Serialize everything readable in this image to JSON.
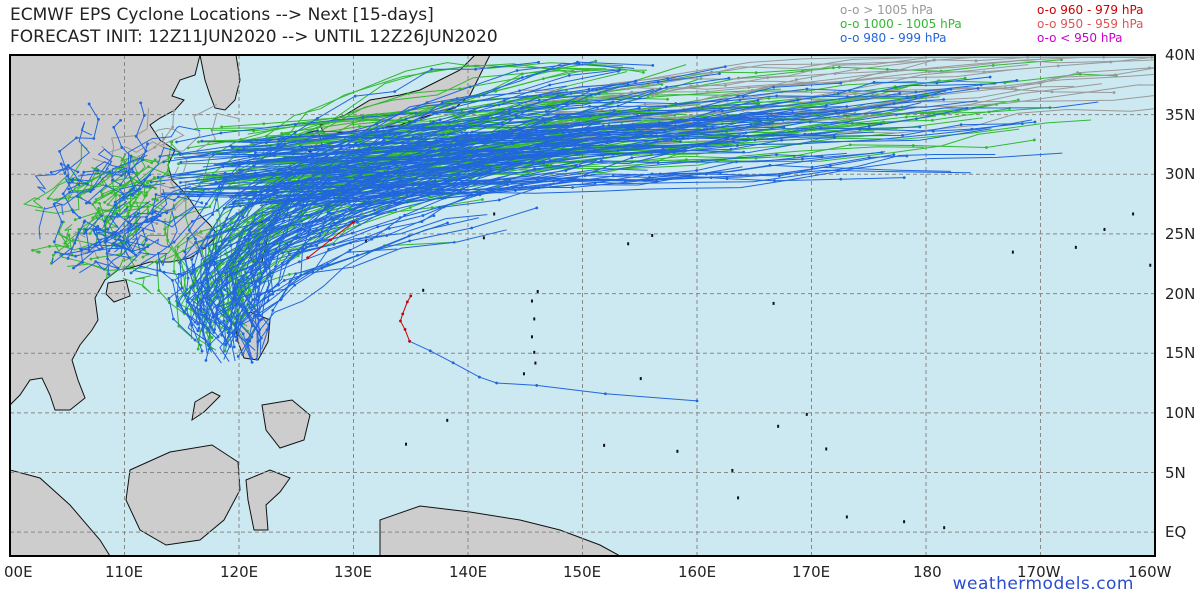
{
  "title": {
    "line1": "ECMWF EPS Cyclone Locations --> Next [15-days]",
    "line2": "FORECAST INIT: 12Z11JUN2020 --> UNTIL 12Z26JUN2020"
  },
  "legend": [
    {
      "label": "o-o > 1005 hPa",
      "color": "#999999"
    },
    {
      "label": "o-o 1000 - 1005 hPa",
      "color": "#33b833"
    },
    {
      "label": "o-o 980 - 999 hPa",
      "color": "#2266dd"
    },
    {
      "label": "o-o 960 - 979 hPa",
      "color": "#cc0000"
    },
    {
      "label": "o-o 950 - 959 hPa",
      "color": "#dd5555"
    },
    {
      "label": "o-o < 950 hPa",
      "color": "#cc00cc"
    }
  ],
  "map": {
    "lon_range": [
      100,
      200
    ],
    "lat_range": [
      -2,
      40
    ],
    "ocean_color": "#cce9f1",
    "land_color": "#cdcdcd",
    "lat_labels": [
      "40N",
      "35N",
      "30N",
      "25N",
      "20N",
      "15N",
      "10N",
      "5N",
      "EQ"
    ],
    "lon_labels": [
      "00E",
      "110E",
      "120E",
      "130E",
      "140E",
      "150E",
      "160E",
      "170E",
      "180",
      "170W",
      "160W"
    ]
  },
  "watermark": "weathermodels.com"
}
